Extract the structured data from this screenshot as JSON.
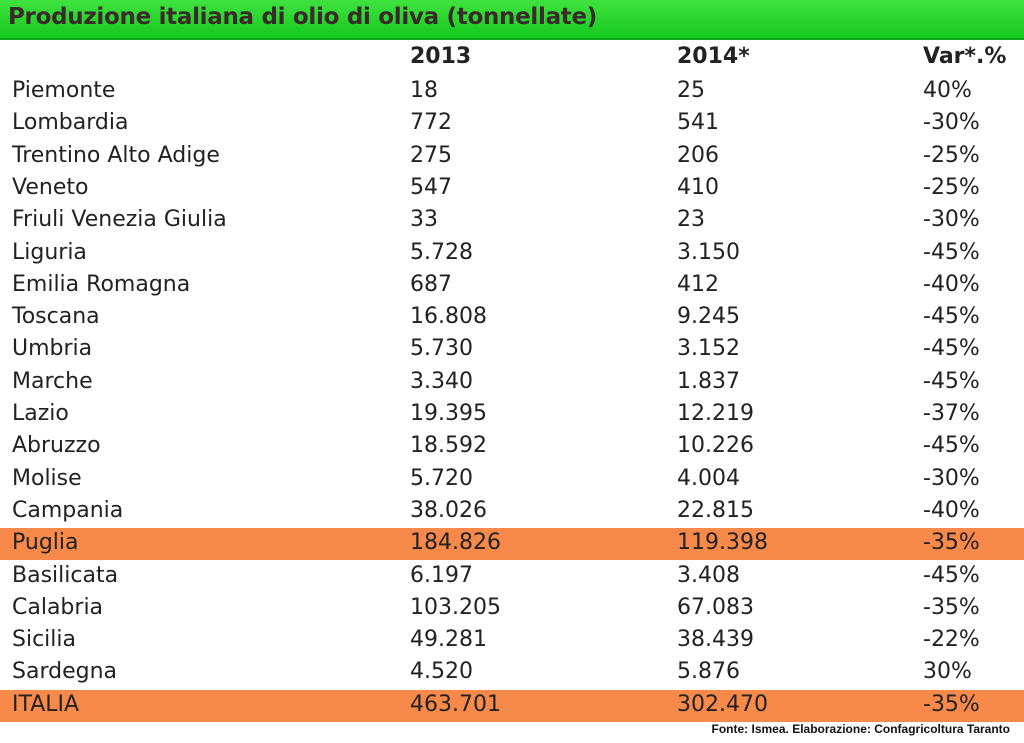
{
  "title": "Produzione italiana di olio di oliva (tonnellate)",
  "headers": [
    "",
    "2013",
    "2014*",
    "Var*.%"
  ],
  "source": "Fonte: Ismea. Elaborazione: Confagricoltura Taranto",
  "highlight_color": "#f7894a",
  "title_bar_color": "#22d12a",
  "chart_data": {
    "type": "table",
    "title": "Produzione italiana di olio di oliva (tonnellate)",
    "columns": [
      "",
      "2013",
      "2014*",
      "Var*.%"
    ],
    "rows": [
      {
        "region": "Piemonte",
        "v2013": "18",
        "v2014": "25",
        "var": "40%",
        "highlight": false
      },
      {
        "region": "Lombardia",
        "v2013": "772",
        "v2014": "541",
        "var": "-30%",
        "highlight": false
      },
      {
        "region": "Trentino Alto Adige",
        "v2013": "275",
        "v2014": "206",
        "var": "-25%",
        "highlight": false
      },
      {
        "region": "Veneto",
        "v2013": "547",
        "v2014": "410",
        "var": "-25%",
        "highlight": false
      },
      {
        "region": "Friuli Venezia Giulia",
        "v2013": "33",
        "v2014": "23",
        "var": "-30%",
        "highlight": false
      },
      {
        "region": "Liguria",
        "v2013": "5.728",
        "v2014": "3.150",
        "var": "-45%",
        "highlight": false
      },
      {
        "region": "Emilia Romagna",
        "v2013": "687",
        "v2014": "412",
        "var": "-40%",
        "highlight": false
      },
      {
        "region": "Toscana",
        "v2013": "16.808",
        "v2014": "9.245",
        "var": "-45%",
        "highlight": false
      },
      {
        "region": "Umbria",
        "v2013": "5.730",
        "v2014": "3.152",
        "var": "-45%",
        "highlight": false
      },
      {
        "region": "Marche",
        "v2013": "3.340",
        "v2014": "1.837",
        "var": "-45%",
        "highlight": false
      },
      {
        "region": "Lazio",
        "v2013": "19.395",
        "v2014": "12.219",
        "var": "-37%",
        "highlight": false
      },
      {
        "region": "Abruzzo",
        "v2013": "18.592",
        "v2014": "10.226",
        "var": "-45%",
        "highlight": false
      },
      {
        "region": "Molise",
        "v2013": "5.720",
        "v2014": "4.004",
        "var": "-30%",
        "highlight": false
      },
      {
        "region": "Campania",
        "v2013": "38.026",
        "v2014": "22.815",
        "var": "-40%",
        "highlight": false
      },
      {
        "region": "Puglia",
        "v2013": "184.826",
        "v2014": "119.398",
        "var": "-35%",
        "highlight": true
      },
      {
        "region": "Basilicata",
        "v2013": "6.197",
        "v2014": "3.408",
        "var": "-45%",
        "highlight": false
      },
      {
        "region": "Calabria",
        "v2013": "103.205",
        "v2014": "67.083",
        "var": "-35%",
        "highlight": false
      },
      {
        "region": "Sicilia",
        "v2013": "49.281",
        "v2014": "38.439",
        "var": "-22%",
        "highlight": false
      },
      {
        "region": "Sardegna",
        "v2013": "4.520",
        "v2014": "5.876",
        "var": "30%",
        "highlight": false
      },
      {
        "region": "ITALIA",
        "v2013": "463.701",
        "v2014": "302.470",
        "var": "-35%",
        "highlight": true
      }
    ]
  }
}
